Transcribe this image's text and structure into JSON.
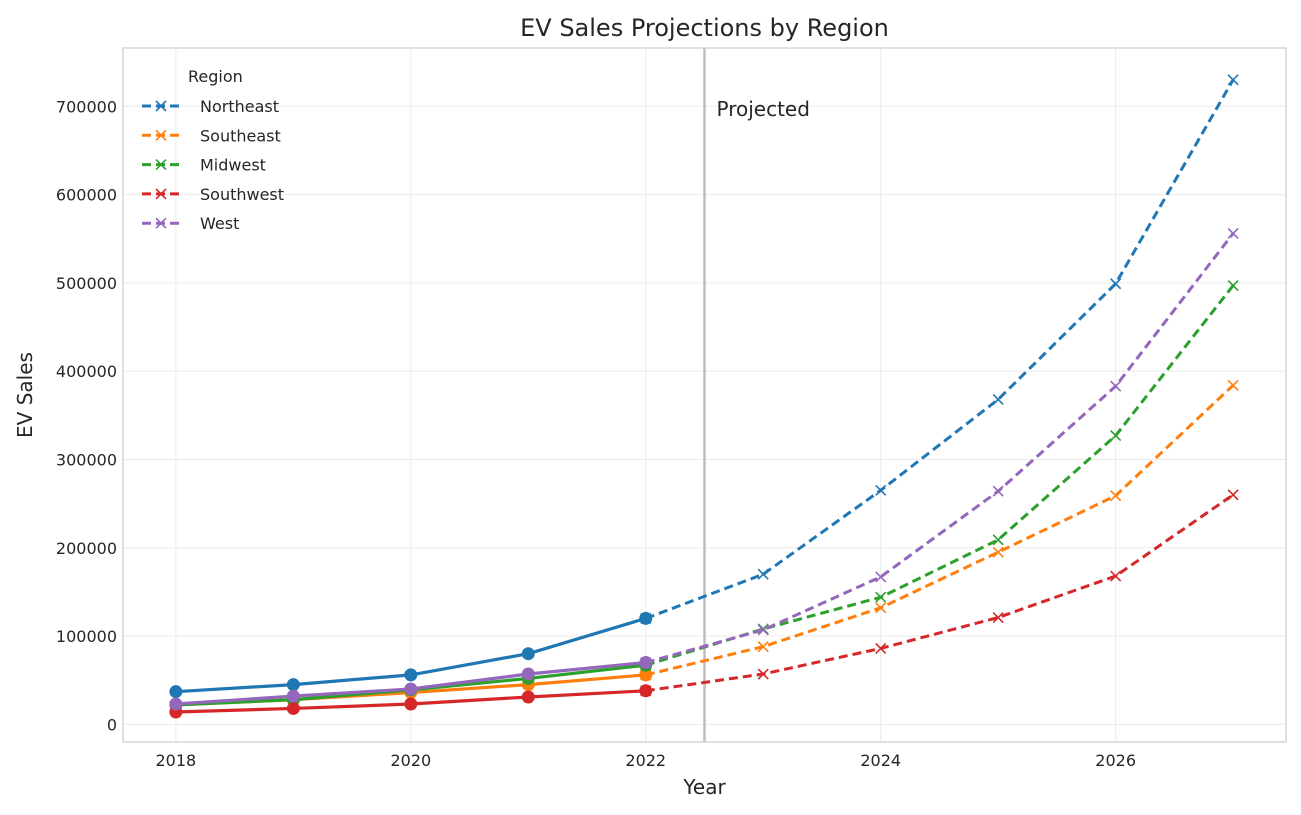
{
  "chart_data": {
    "type": "line",
    "title": "EV Sales Projections by Region",
    "xlabel": "Year",
    "ylabel": "EV Sales",
    "xlim": [
      2017.55,
      2027.45
    ],
    "ylim": [
      -20000,
      766000
    ],
    "xticks": [
      2018,
      2020,
      2022,
      2024,
      2026
    ],
    "yticks": [
      0,
      100000,
      200000,
      300000,
      400000,
      500000,
      600000,
      700000
    ],
    "grid": true,
    "legend": {
      "title": "Region",
      "placement": "top-left"
    },
    "projection_start": 2022.5,
    "annotation": "Projected",
    "historical_years": [
      2018,
      2019,
      2020,
      2021,
      2022
    ],
    "projected_years": [
      2022,
      2023,
      2024,
      2025,
      2026,
      2027
    ],
    "series": [
      {
        "name": "Northeast",
        "color": "#1f77b4",
        "historical": [
          37000,
          45000,
          56000,
          80000,
          120000
        ],
        "projected": [
          120000,
          170000,
          265000,
          368000,
          499000,
          730000
        ]
      },
      {
        "name": "Southeast",
        "color": "#ff7f0e",
        "historical": [
          22000,
          28000,
          36000,
          45000,
          56000
        ],
        "projected": [
          56000,
          88000,
          132000,
          195000,
          259000,
          384000
        ]
      },
      {
        "name": "Midwest",
        "color": "#2ca02c",
        "historical": [
          22000,
          28000,
          39000,
          52000,
          67000
        ],
        "projected": [
          67000,
          108000,
          144000,
          209000,
          327000,
          497000
        ]
      },
      {
        "name": "Southwest",
        "color": "#d62728",
        "historical": [
          14000,
          18000,
          23000,
          31000,
          38000
        ],
        "projected": [
          38000,
          57000,
          86000,
          121000,
          168000,
          260000
        ]
      },
      {
        "name": "West",
        "color": "#9467bd",
        "historical": [
          23000,
          32000,
          40000,
          57000,
          70000
        ],
        "projected": [
          70000,
          107000,
          167000,
          264000,
          383000,
          556000
        ]
      }
    ]
  }
}
